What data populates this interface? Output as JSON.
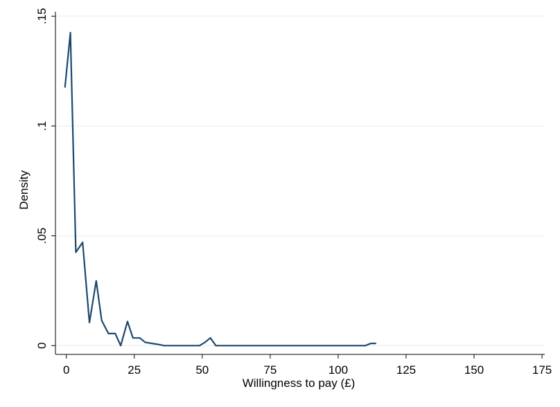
{
  "chart_data": {
    "type": "line",
    "title": "",
    "xlabel": "Willingness to pay (£)",
    "ylabel": "Density",
    "xlim": [
      -4,
      176
    ],
    "ylim": [
      -0.004,
      0.152
    ],
    "x_ticks": [
      0,
      25,
      50,
      75,
      100,
      125,
      150,
      175
    ],
    "x_tick_labels": [
      "0",
      "25",
      "50",
      "75",
      "100",
      "125",
      "150",
      "175"
    ],
    "y_ticks": [
      0,
      0.05,
      0.1,
      0.15
    ],
    "y_tick_labels": [
      "0",
      ".05",
      ".1",
      ".15"
    ],
    "grid": true,
    "line_color": "#1a476f",
    "grid_color": "#eaf2f3",
    "series": [
      {
        "x": [
          -0.5,
          1.5,
          3.5,
          6,
          8.5,
          11,
          13,
          15.5,
          18,
          20,
          22.5,
          24.5,
          27,
          29,
          31.5,
          34,
          36,
          40,
          45,
          49,
          51,
          53,
          55,
          60,
          70,
          80,
          90,
          100,
          107,
          110,
          112,
          114
        ],
        "y": [
          0.1175,
          0.1425,
          0.0425,
          0.047,
          0.0105,
          0.0295,
          0.0115,
          0.0055,
          0.0055,
          0.0,
          0.011,
          0.0035,
          0.0035,
          0.0015,
          0.001,
          0.0005,
          0.0,
          0.0,
          0.0,
          0.0,
          0.0015,
          0.0035,
          0.0,
          0.0,
          0.0,
          0.0,
          0.0,
          0.0,
          0.0,
          0.0,
          0.001,
          0.001
        ]
      }
    ]
  }
}
